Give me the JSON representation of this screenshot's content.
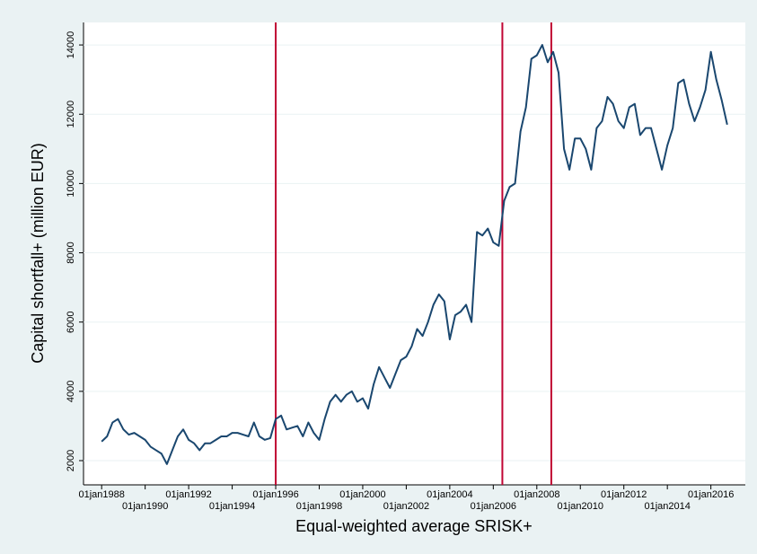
{
  "chart_data": {
    "type": "line",
    "y_label": "Capital shortfall+ (million EUR)",
    "x_label": "Equal-weighted average SRISK+",
    "x": [
      "1988-01",
      "1988-04",
      "1988-07",
      "1988-10",
      "1989-01",
      "1989-04",
      "1989-07",
      "1989-10",
      "1990-01",
      "1990-04",
      "1990-07",
      "1990-10",
      "1991-01",
      "1991-04",
      "1991-07",
      "1991-10",
      "1992-01",
      "1992-04",
      "1992-07",
      "1992-10",
      "1993-01",
      "1993-04",
      "1993-07",
      "1993-10",
      "1994-01",
      "1994-04",
      "1994-07",
      "1994-10",
      "1995-01",
      "1995-04",
      "1995-07",
      "1995-10",
      "1996-01",
      "1996-04",
      "1996-07",
      "1996-10",
      "1997-01",
      "1997-04",
      "1997-07",
      "1997-10",
      "1998-01",
      "1998-04",
      "1998-07",
      "1998-10",
      "1999-01",
      "1999-04",
      "1999-07",
      "1999-10",
      "2000-01",
      "2000-04",
      "2000-07",
      "2000-10",
      "2001-01",
      "2001-04",
      "2001-07",
      "2001-10",
      "2002-01",
      "2002-04",
      "2002-07",
      "2002-10",
      "2003-01",
      "2003-04",
      "2003-07",
      "2003-10",
      "2004-01",
      "2004-04",
      "2004-07",
      "2004-10",
      "2005-01",
      "2005-04",
      "2005-07",
      "2005-10",
      "2006-01",
      "2006-04",
      "2006-07",
      "2006-10",
      "2007-01",
      "2007-04",
      "2007-07",
      "2007-10",
      "2008-01",
      "2008-04",
      "2008-07",
      "2008-10",
      "2009-01",
      "2009-04",
      "2009-07",
      "2009-10",
      "2010-01",
      "2010-04",
      "2010-07",
      "2010-10",
      "2011-01",
      "2011-04",
      "2011-07",
      "2011-10",
      "2012-01",
      "2012-04",
      "2012-07",
      "2012-10",
      "2013-01",
      "2013-04",
      "2013-07",
      "2013-10",
      "2014-01",
      "2014-04",
      "2014-07",
      "2014-10",
      "2015-01",
      "2015-04",
      "2015-07",
      "2015-10",
      "2016-01",
      "2016-04",
      "2016-07",
      "2016-10"
    ],
    "series": [
      {
        "color": "#1a476f",
        "values": [
          2550,
          2700,
          3100,
          3200,
          2900,
          2750,
          2800,
          2700,
          2600,
          2400,
          2300,
          2200,
          1900,
          2300,
          2700,
          2900,
          2600,
          2500,
          2300,
          2500,
          2500,
          2600,
          2700,
          2700,
          2800,
          2800,
          2750,
          2700,
          3100,
          2700,
          2600,
          2650,
          3200,
          3300,
          2900,
          2950,
          3000,
          2700,
          3100,
          2800,
          2600,
          3200,
          3700,
          3900,
          3700,
          3900,
          4000,
          3700,
          3800,
          3500,
          4200,
          4700,
          4400,
          4100,
          4500,
          4900,
          5000,
          5300,
          5800,
          5600,
          6000,
          6500,
          6800,
          6600,
          5500,
          6200,
          6300,
          6500,
          6000,
          8600,
          8500,
          8700,
          8300,
          8200,
          9500,
          9900,
          10000,
          11500,
          12200,
          13600,
          13700,
          14000,
          13500,
          13800,
          13200,
          11000,
          10400,
          11300,
          11300,
          11000,
          10400,
          11600,
          11800,
          12500,
          12300,
          11800,
          11600,
          12200,
          12300,
          11400,
          11600,
          11600,
          11000,
          10400,
          11100,
          11600,
          12900,
          13000,
          12300,
          11800,
          12200,
          12700,
          13800,
          13000,
          12400,
          11700
        ]
      }
    ],
    "xlim": [
      "1987-03",
      "2017-08"
    ],
    "ylim": [
      1300,
      14650
    ],
    "yticks": [
      2000,
      4000,
      6000,
      8000,
      10000,
      12000,
      14000
    ],
    "xticks": [
      {
        "value": "1988-01",
        "label": "01jan1988"
      },
      {
        "value": "1990-01",
        "label": "01jan1990"
      },
      {
        "value": "1992-01",
        "label": "01jan1992"
      },
      {
        "value": "1994-01",
        "label": "01jan1994"
      },
      {
        "value": "1996-01",
        "label": "01jan1996"
      },
      {
        "value": "1998-01",
        "label": "01jan1998"
      },
      {
        "value": "2000-01",
        "label": "01jan2000"
      },
      {
        "value": "2002-01",
        "label": "01jan2002"
      },
      {
        "value": "2004-01",
        "label": "01jan2004"
      },
      {
        "value": "2006-01",
        "label": "01jan2006"
      },
      {
        "value": "2008-01",
        "label": "01jan2008"
      },
      {
        "value": "2010-01",
        "label": "01jan2010"
      },
      {
        "value": "2012-01",
        "label": "01jan2012"
      },
      {
        "value": "2014-01",
        "label": "01jan2014"
      },
      {
        "value": "2016-01",
        "label": "01jan2016"
      }
    ],
    "xlines": [
      "1996-01",
      "2006-06",
      "2008-09"
    ],
    "xline_color": "#c10534",
    "grid": true
  }
}
